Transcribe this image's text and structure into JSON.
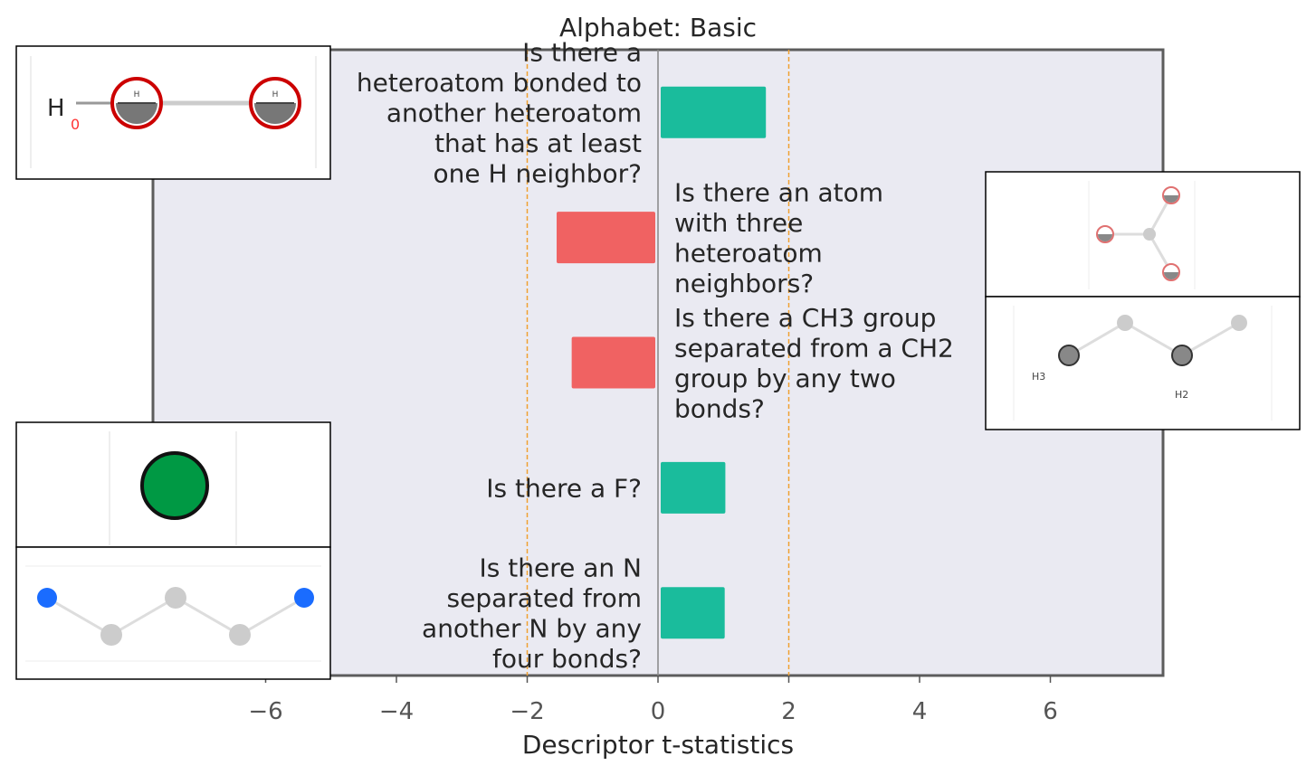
{
  "chart_data": {
    "type": "bar",
    "orientation": "horizontal",
    "title": "Alphabet: Basic",
    "xlabel": "Descriptor t-statistics",
    "ylabel": "",
    "xlim": [
      -7.6,
      7.8
    ],
    "xticks": [
      -6,
      -4,
      -2,
      0,
      2,
      4,
      6
    ],
    "xtick_labels": [
      "−6",
      "−4",
      "−2",
      "0",
      "2",
      "4",
      "6"
    ],
    "threshold_lines": [
      -2,
      2
    ],
    "grid": false,
    "legend": "none",
    "colors": {
      "positive": "#1abc9c",
      "negative": "#f06262",
      "threshold": "#f0a030",
      "background": "#eaeaf2"
    },
    "bars": [
      {
        "value": 1.65,
        "lines": [
          "Is there a",
          "heteroatom bonded to",
          "another heteroatom",
          "that has at least",
          "one H neighbor?"
        ]
      },
      {
        "value": -1.55,
        "lines": [
          "Is there an atom",
          "with three",
          "heteroatom",
          "neighbors?"
        ]
      },
      {
        "value": -1.32,
        "lines": [
          "Is there a CH3 group",
          "separated from a CH2",
          "group by any two",
          "bonds?"
        ]
      },
      {
        "value": 1.03,
        "lines": [
          "Is there a F?"
        ]
      },
      {
        "value": 1.02,
        "lines": [
          "Is there an N",
          "separated from",
          "another N by any",
          "four bonds?"
        ]
      }
    ]
  },
  "molecule_insets": [
    {
      "icon": "hydrogen-bonded-heteroatoms-molecule",
      "labels": [
        "H",
        "0",
        "H",
        "H"
      ]
    },
    {
      "icon": "three-heteroatom-neighbors-molecule"
    },
    {
      "icon": "ch3-ch2-molecule",
      "labels": [
        "H3",
        "H2"
      ]
    },
    {
      "icon": "fluorine-atom-molecule"
    },
    {
      "icon": "nitrogen-chain-molecule"
    }
  ]
}
